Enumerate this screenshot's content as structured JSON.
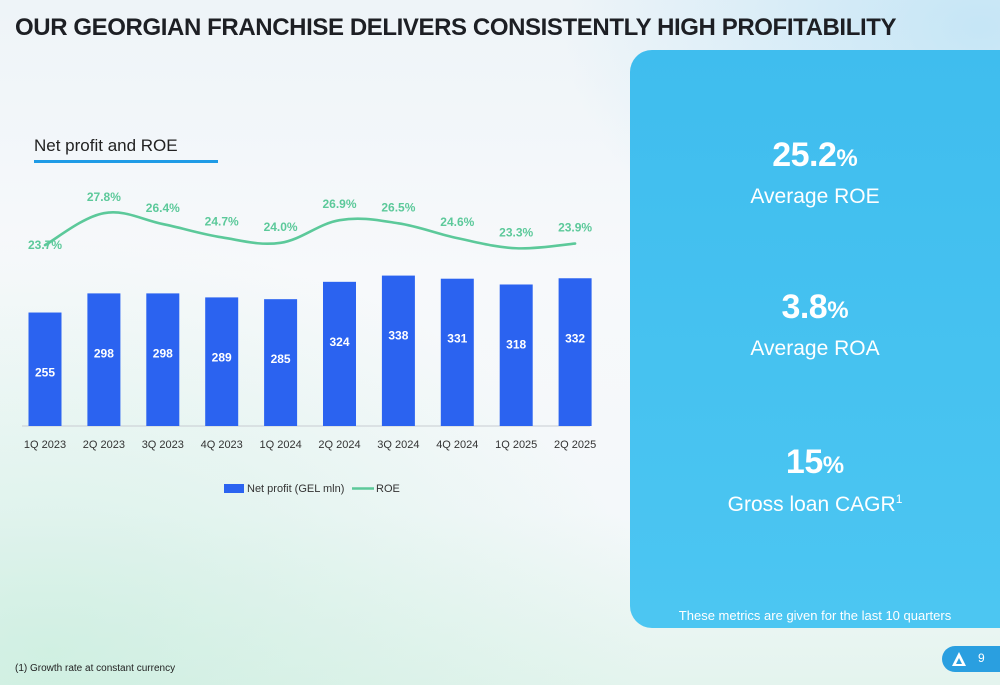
{
  "header": {
    "title": "OUR GEORGIAN FRANCHISE DELIVERS CONSISTENTLY HIGH PROFITABILITY"
  },
  "chart_title": "Net profit and ROE",
  "chart_data": {
    "type": "bar",
    "categories": [
      "1Q 2023",
      "2Q 2023",
      "3Q 2023",
      "4Q 2023",
      "1Q 2024",
      "2Q 2024",
      "3Q 2024",
      "4Q 2024",
      "1Q 2025",
      "2Q 2025"
    ],
    "series": [
      {
        "name": "Net profit (GEL mln)",
        "type": "bar",
        "color": "#2b63f0",
        "values": [
          255,
          298,
          298,
          289,
          285,
          324,
          338,
          331,
          318,
          332
        ],
        "labels": [
          "255",
          "298",
          "298",
          "289",
          "285",
          "324",
          "338",
          "331",
          "318",
          "332"
        ]
      },
      {
        "name": "ROE",
        "type": "line",
        "color": "#5cc99a",
        "values": [
          23.7,
          27.8,
          26.4,
          24.7,
          24.0,
          26.9,
          26.5,
          24.6,
          23.3,
          23.9
        ],
        "labels": [
          "23.7%",
          "27.8%",
          "26.4%",
          "24.7%",
          "24.0%",
          "26.9%",
          "26.5%",
          "24.6%",
          "23.3%",
          "23.9%"
        ]
      }
    ],
    "legend": {
      "position": "bottom-center"
    },
    "grid": false
  },
  "panel": {
    "metrics": [
      {
        "value": "25.2",
        "unit": "%",
        "label": "Average ROE"
      },
      {
        "value": "3.8",
        "unit": "%",
        "label": "Average ROA"
      },
      {
        "value": "15",
        "unit": "%",
        "label": "Gross loan CAGR",
        "superscript": "1"
      }
    ],
    "footnote": "These metrics are given for the last 10 quarters"
  },
  "footnote": "(1) Growth rate at constant currency",
  "page": {
    "number": "9",
    "logo_icon": "triangle-logo-icon"
  },
  "colors": {
    "bar": "#2b63f0",
    "line": "#5cc99a",
    "panel": "#45c1f0",
    "accent": "#1f9be6"
  }
}
